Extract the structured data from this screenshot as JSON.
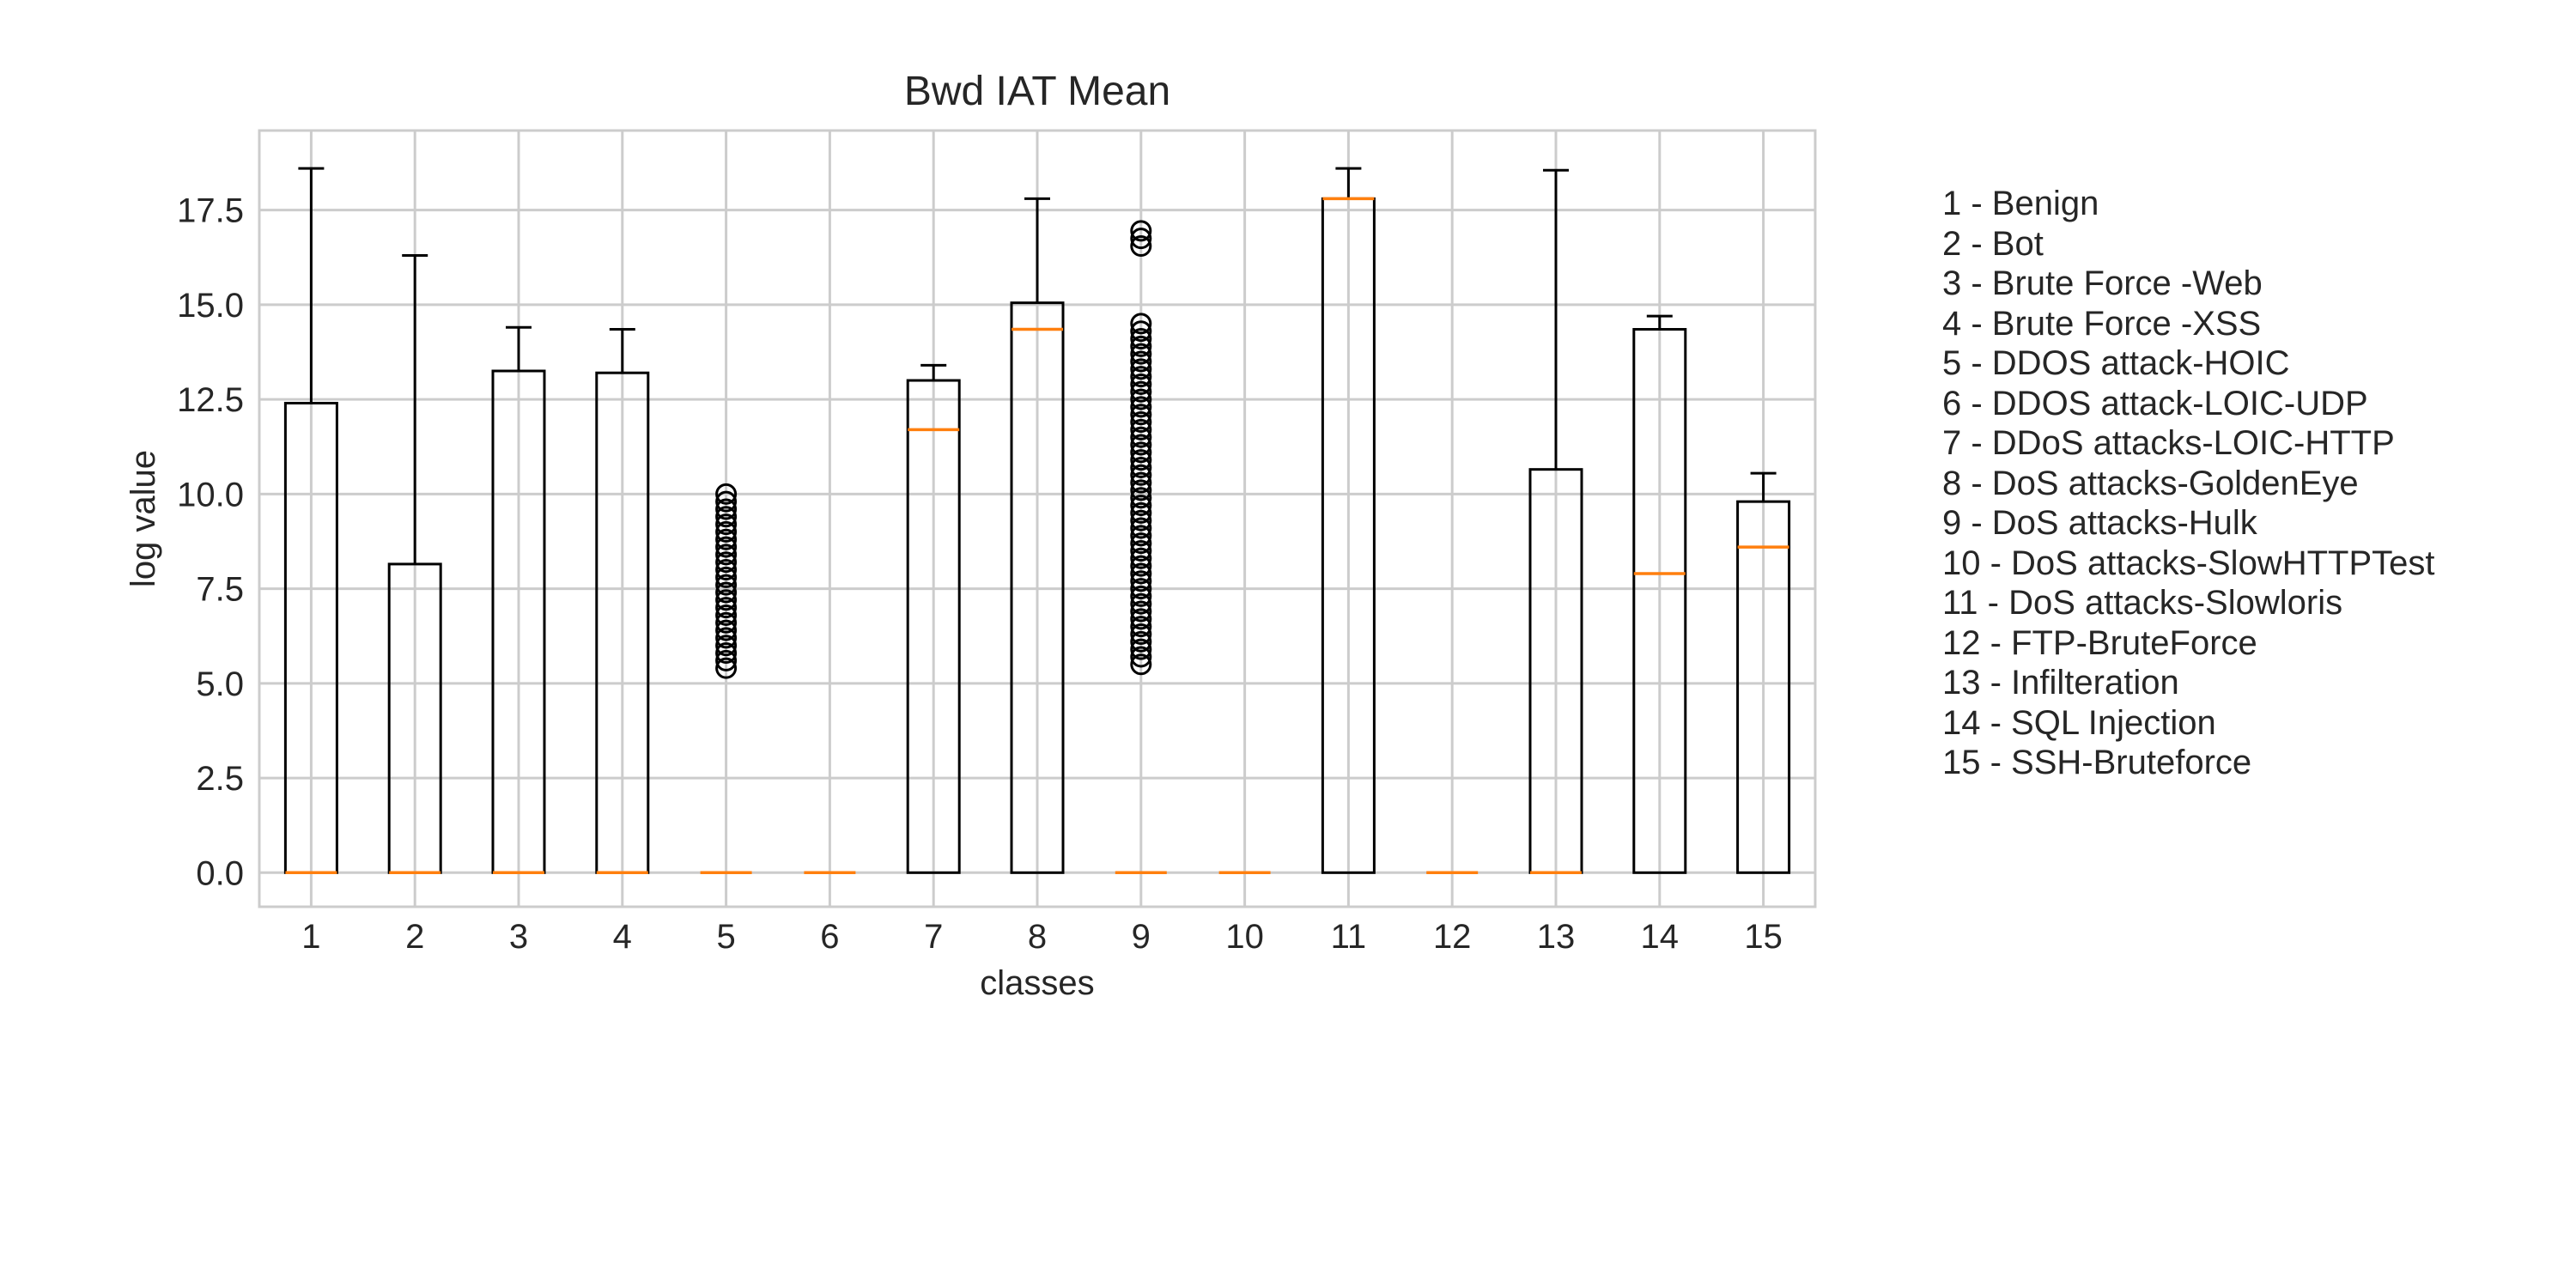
{
  "chart_data": {
    "type": "boxplot",
    "title": "Bwd IAT Mean",
    "xlabel": "classes",
    "ylabel": "log value",
    "ylim": [
      -0.9,
      19.6
    ],
    "yticks": [
      "0.0",
      "2.5",
      "5.0",
      "7.5",
      "10.0",
      "12.5",
      "15.0",
      "17.5"
    ],
    "grid": true,
    "categories": [
      "1",
      "2",
      "3",
      "4",
      "5",
      "6",
      "7",
      "8",
      "9",
      "10",
      "11",
      "12",
      "13",
      "14",
      "15"
    ],
    "boxes": [
      {
        "label": "1",
        "whislo": 0,
        "q1": 0,
        "med": 0,
        "q3": 12.4,
        "whishi": 18.6,
        "fliers": []
      },
      {
        "label": "2",
        "whislo": 0,
        "q1": 0,
        "med": 0,
        "q3": 8.15,
        "whishi": 16.3,
        "fliers": []
      },
      {
        "label": "3",
        "whislo": 0,
        "q1": 0,
        "med": 0,
        "q3": 13.25,
        "whishi": 14.4,
        "fliers": []
      },
      {
        "label": "4",
        "whislo": 0,
        "q1": 0,
        "med": 0,
        "q3": 13.2,
        "whishi": 14.35,
        "fliers": []
      },
      {
        "label": "5",
        "whislo": 0,
        "q1": 0,
        "med": 0,
        "q3": 0,
        "whishi": 0,
        "fliers": [
          5.4,
          5.6,
          5.8,
          6.0,
          6.2,
          6.4,
          6.6,
          6.8,
          7.0,
          7.2,
          7.4,
          7.6,
          7.8,
          8.0,
          8.2,
          8.4,
          8.6,
          8.8,
          9.0,
          9.2,
          9.4,
          9.6,
          9.8,
          10.0
        ]
      },
      {
        "label": "6",
        "whislo": 0,
        "q1": 0,
        "med": 0,
        "q3": 0,
        "whishi": 0,
        "fliers": []
      },
      {
        "label": "7",
        "whislo": 0,
        "q1": 0,
        "med": 11.7,
        "q3": 13.0,
        "whishi": 13.4,
        "fliers": []
      },
      {
        "label": "8",
        "whislo": 0,
        "q1": 0,
        "med": 14.35,
        "q3": 15.05,
        "whishi": 17.8,
        "fliers": []
      },
      {
        "label": "9",
        "whislo": 0,
        "q1": 0,
        "med": 0,
        "q3": 0,
        "whishi": 0,
        "fliers": [
          5.5,
          5.7,
          5.9,
          6.1,
          6.3,
          6.5,
          6.7,
          6.9,
          7.1,
          7.3,
          7.5,
          7.7,
          7.9,
          8.1,
          8.3,
          8.5,
          8.7,
          8.9,
          9.1,
          9.3,
          9.5,
          9.7,
          9.9,
          10.1,
          10.3,
          10.5,
          10.7,
          10.9,
          11.1,
          11.3,
          11.5,
          11.7,
          11.9,
          12.1,
          12.3,
          12.5,
          12.7,
          12.9,
          13.1,
          13.3,
          13.5,
          13.7,
          13.9,
          14.1,
          14.3,
          14.5,
          16.55,
          16.75,
          16.95
        ]
      },
      {
        "label": "10",
        "whislo": 0,
        "q1": 0,
        "med": 0,
        "q3": 0,
        "whishi": 0,
        "fliers": []
      },
      {
        "label": "11",
        "whislo": 0,
        "q1": 0,
        "med": 17.8,
        "q3": 17.8,
        "whishi": 18.6,
        "fliers": []
      },
      {
        "label": "12",
        "whislo": 0,
        "q1": 0,
        "med": 0,
        "q3": 0,
        "whishi": 0,
        "fliers": []
      },
      {
        "label": "13",
        "whislo": 0,
        "q1": 0,
        "med": 0,
        "q3": 10.65,
        "whishi": 18.55,
        "fliers": []
      },
      {
        "label": "14",
        "whislo": 0,
        "q1": 0,
        "med": 7.9,
        "q3": 14.35,
        "whishi": 14.7,
        "fliers": []
      },
      {
        "label": "15",
        "whislo": 0,
        "q1": 0,
        "med": 8.6,
        "q3": 9.8,
        "whishi": 10.55,
        "fliers": []
      }
    ],
    "colors": {
      "box": "#000000",
      "median": "#ff7f0e",
      "grid": "#cccccc",
      "axis": "#cccccc",
      "text": "#262626"
    }
  },
  "legend": {
    "items": [
      "1 - Benign",
      "2 - Bot",
      "3 - Brute Force -Web",
      "4 - Brute Force -XSS",
      "5 - DDOS attack-HOIC",
      "6 - DDOS attack-LOIC-UDP",
      "7 - DDoS attacks-LOIC-HTTP",
      "8 - DoS attacks-GoldenEye",
      "9 - DoS attacks-Hulk",
      "10 - DoS attacks-SlowHTTPTest",
      "11 - DoS attacks-Slowloris",
      "12 - FTP-BruteForce",
      "13 - Infilteration",
      "14 - SQL Injection",
      "15 - SSH-Bruteforce"
    ]
  }
}
